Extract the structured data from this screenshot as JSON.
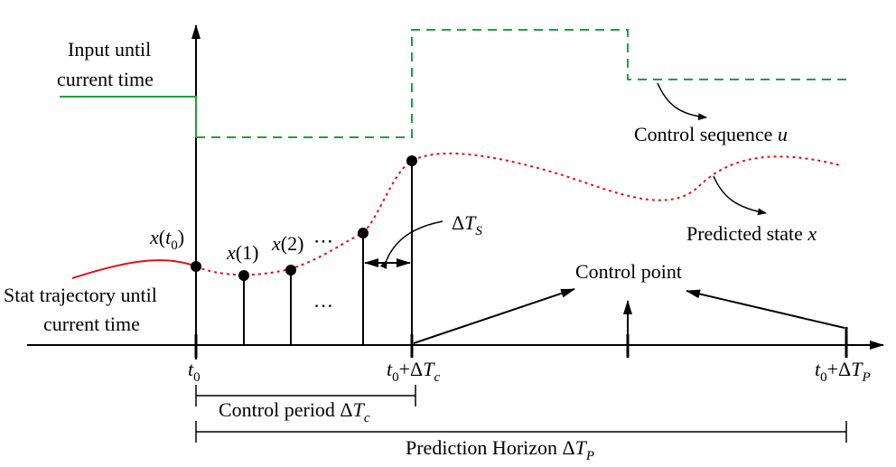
{
  "labels": {
    "input_line1": "Input until",
    "input_line2": "current time",
    "state_line1": "Stat trajectory until",
    "state_line2": "current time",
    "control_sequence": "Control sequence ",
    "control_sequence_var": "u",
    "predicted_state": "Predicted state ",
    "predicted_state_var": "x",
    "control_point": "Control point",
    "delta": "Δ",
    "ts_var": "T",
    "ts_sub": "S",
    "x_var": "x",
    "x_t0_paren_open": "(",
    "x_t0_t": "t",
    "x_t0_sub": "0",
    "x_t0_paren_close": ")",
    "x1_arg": "(1)",
    "x2_arg": "(2)",
    "ellipsis_top": "⋯",
    "ellipsis_bottom": "…",
    "tick_t": "t",
    "tick_sub0": "0",
    "tick_plus": "+Δ",
    "tick_T": "T",
    "tick_c": "c",
    "tick_P": "P",
    "control_period": "Control period Δ",
    "prediction_horizon": "Prediction Horizon Δ"
  },
  "colors": {
    "input_line": "#1aa33b",
    "state_past": "#e0101a",
    "predicted_dotted": "#e0101a",
    "axes": "#000000"
  }
}
